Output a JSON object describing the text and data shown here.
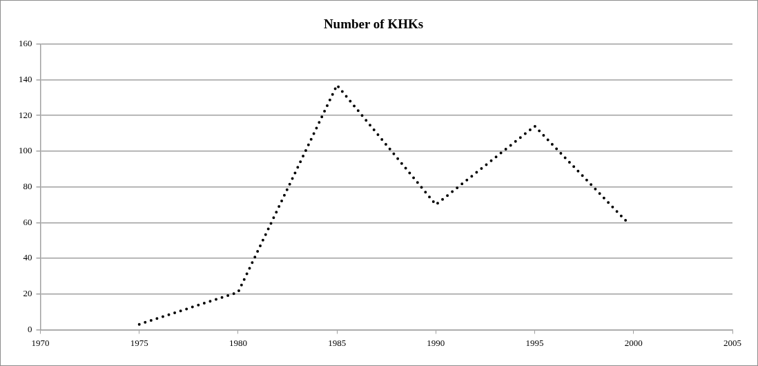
{
  "chart_data": {
    "type": "line",
    "title": "Number of KHKs",
    "x": [
      1975,
      1980,
      1985,
      1990,
      1995,
      1999.7
    ],
    "series": [
      {
        "color": "#000000",
        "values": [
          3,
          21,
          137,
          70,
          114,
          60
        ]
      }
    ],
    "xlim": [
      1970,
      2005
    ],
    "xticks": [
      1970,
      1975,
      1980,
      1985,
      1990,
      1995,
      2000,
      2005
    ],
    "ylim": [
      0,
      160
    ],
    "yticks": [
      0,
      20,
      40,
      60,
      80,
      100,
      120,
      140,
      160
    ],
    "grid": "y",
    "legend": false,
    "marker": "none",
    "line_style": "dotted"
  }
}
